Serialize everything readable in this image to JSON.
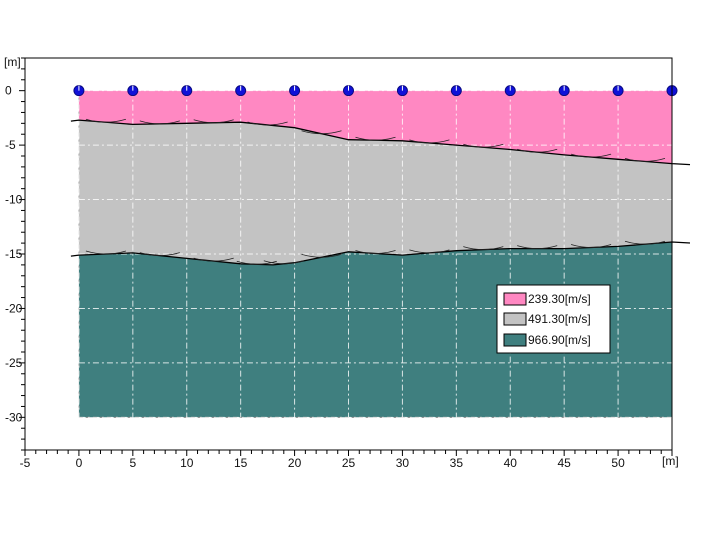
{
  "chart_data": {
    "type": "area",
    "title": "",
    "x_unit_label": "[m]",
    "y_unit_label": "[m]",
    "xlim": [
      -5,
      55
    ],
    "ylim": [
      -33,
      3
    ],
    "x_ticks": [
      -5,
      0,
      5,
      10,
      15,
      20,
      25,
      30,
      35,
      40,
      45,
      50
    ],
    "x_tick_labels": [
      "-5",
      "0",
      "5",
      "10",
      "15",
      "20",
      "25",
      "30",
      "35",
      "40",
      "45",
      "50"
    ],
    "y_ticks": [
      0,
      -5,
      -10,
      -15,
      -20,
      -25,
      -30
    ],
    "y_tick_labels": [
      "0",
      "-5",
      "-10",
      "-15",
      "-20",
      "-25",
      "-30"
    ],
    "grid": true,
    "model_x_range": [
      0,
      55
    ],
    "model_bottom": -30,
    "layers": [
      {
        "label": "239.30[m/s]",
        "color": "#ff88c2"
      },
      {
        "label": "491.30[m/s]",
        "color": "#c3c3c3"
      },
      {
        "label": "966.90[m/s]",
        "color": "#3f7f7f"
      }
    ],
    "boundary1": {
      "x": [
        0,
        5,
        10,
        15,
        20,
        25,
        30,
        35,
        40,
        45,
        50,
        55
      ],
      "y": [
        -2.7,
        -3.1,
        -3.0,
        -2.9,
        -3.4,
        -4.5,
        -4.6,
        -5.0,
        -5.4,
        -5.9,
        -6.3,
        -6.7
      ]
    },
    "boundary2": {
      "x": [
        0,
        5,
        10,
        15,
        18,
        20,
        25,
        30,
        35,
        40,
        45,
        50,
        55
      ],
      "y": [
        -15.1,
        -14.9,
        -15.4,
        -15.9,
        -16.0,
        -15.8,
        -14.8,
        -15.1,
        -14.7,
        -14.5,
        -14.5,
        -14.3,
        -13.9
      ]
    },
    "geophones": {
      "x": [
        0,
        5,
        10,
        15,
        20,
        25,
        30,
        35,
        40,
        45,
        50,
        55
      ],
      "y": 0
    },
    "legend_position": "right-center",
    "colors": {
      "geophone": "#1010d8",
      "boundary": "#000000",
      "grid": "#ffffff"
    }
  }
}
